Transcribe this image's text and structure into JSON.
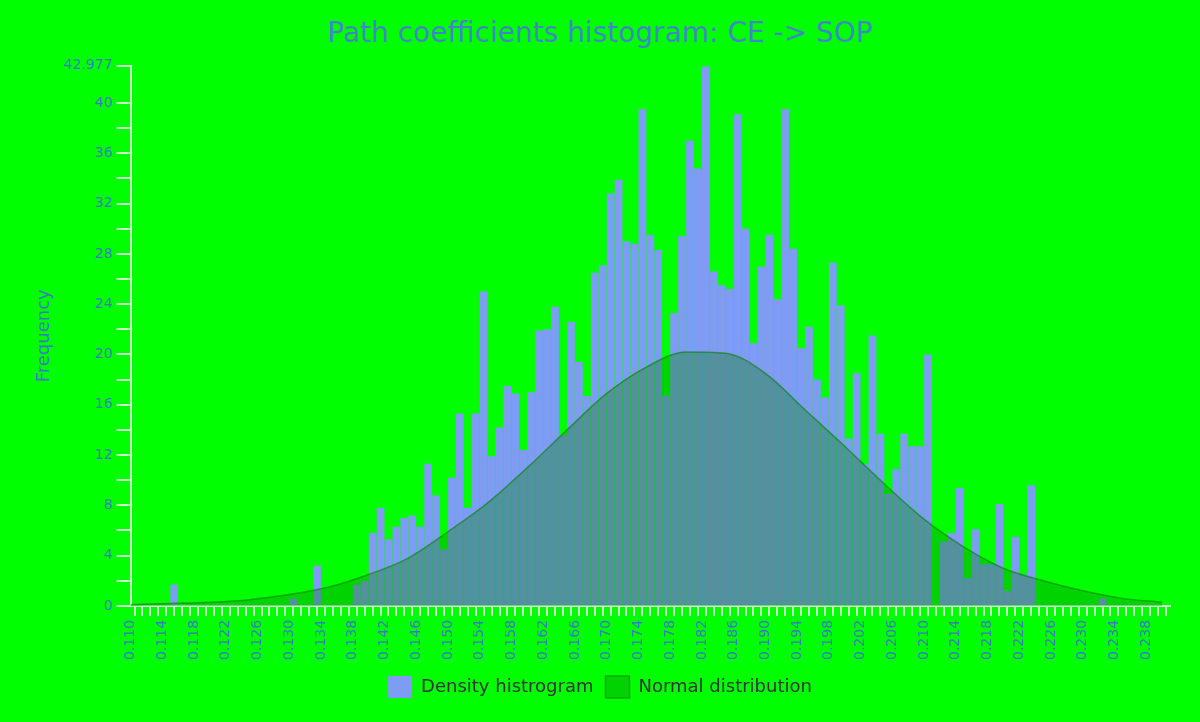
{
  "chart_data": {
    "type": "histogram",
    "title": "Path coefficients histogram: CE -> SOP",
    "ylabel": "Frequency",
    "bins": [
      0.11,
      0.111,
      0.112,
      0.113,
      0.114,
      0.115,
      0.116,
      0.117,
      0.118,
      0.119,
      0.12,
      0.121,
      0.122,
      0.123,
      0.124,
      0.125,
      0.126,
      0.127,
      0.128,
      0.129,
      0.13,
      0.131,
      0.132,
      0.133,
      0.134,
      0.135,
      0.136,
      0.137,
      0.138,
      0.139,
      0.14,
      0.141,
      0.142,
      0.143,
      0.144,
      0.145,
      0.146,
      0.147,
      0.148,
      0.149,
      0.15,
      0.151,
      0.152,
      0.153,
      0.154,
      0.155,
      0.156,
      0.157,
      0.158,
      0.159,
      0.16,
      0.161,
      0.162,
      0.163,
      0.164,
      0.165,
      0.166,
      0.167,
      0.168,
      0.169,
      0.17,
      0.171,
      0.172,
      0.173,
      0.174,
      0.175,
      0.176,
      0.177,
      0.178,
      0.179,
      0.18,
      0.181,
      0.182,
      0.183,
      0.184,
      0.185,
      0.186,
      0.187,
      0.188,
      0.189,
      0.19,
      0.191,
      0.192,
      0.193,
      0.194,
      0.195,
      0.196,
      0.197,
      0.198,
      0.199,
      0.2,
      0.201,
      0.202,
      0.203,
      0.204,
      0.205,
      0.206,
      0.207,
      0.208,
      0.209,
      0.21,
      0.211,
      0.212,
      0.213,
      0.214,
      0.215,
      0.216,
      0.217,
      0.218,
      0.219,
      0.22,
      0.221,
      0.222,
      0.223,
      0.224,
      0.225,
      0.226,
      0.227,
      0.228,
      0.229,
      0.23,
      0.231,
      0.232,
      0.233,
      0.234,
      0.235,
      0.236,
      0.237,
      0.238,
      0.239,
      0.24
    ],
    "series": [
      {
        "name": "Density histrogram",
        "color": "#7f9cf4",
        "values": [
          0,
          0,
          0,
          0,
          0,
          1.7,
          0,
          0,
          0,
          0,
          0,
          0,
          0,
          0,
          0,
          0,
          0,
          0,
          0,
          0,
          0.6,
          0,
          0,
          3.2,
          0,
          0,
          0,
          0,
          1.7,
          2.0,
          5.8,
          7.8,
          5.3,
          6.3,
          7.0,
          7.2,
          6.3,
          11.3,
          8.8,
          4.5,
          10.2,
          15.3,
          7.8,
          15.3,
          25.0,
          11.9,
          14.2,
          17.5,
          16.9,
          12.4,
          17.0,
          21.9,
          22.0,
          23.8,
          13.6,
          22.6,
          19.4,
          16.7,
          26.5,
          27.1,
          32.8,
          33.9,
          29.0,
          28.8,
          39.5,
          29.5,
          28.3,
          16.7,
          23.3,
          29.4,
          37.0,
          34.8,
          42.9,
          26.6,
          25.5,
          25.2,
          39.1,
          30.0,
          20.9,
          27.0,
          29.5,
          24.4,
          39.5,
          28.4,
          20.5,
          22.2,
          18.0,
          16.6,
          27.3,
          23.9,
          13.3,
          18.5,
          11.3,
          21.5,
          13.7,
          8.9,
          10.9,
          13.7,
          12.7,
          12.7,
          20.0,
          0,
          5.1,
          5.8,
          9.4,
          2.2,
          6.1,
          3.3,
          3.3,
          8.1,
          1.2,
          5.5,
          2.5,
          9.6,
          0,
          0,
          0,
          0,
          0,
          0,
          0,
          0,
          0.6,
          0,
          0,
          0,
          0,
          0,
          0,
          0
        ]
      },
      {
        "name": "Normal distribution",
        "type": "area",
        "color": "#008000",
        "x": [
          0.11,
          0.115,
          0.12,
          0.125,
          0.13,
          0.135,
          0.14,
          0.145,
          0.15,
          0.155,
          0.16,
          0.165,
          0.17,
          0.175,
          0.18,
          0.185,
          0.19,
          0.195,
          0.2,
          0.205,
          0.21,
          0.215,
          0.22,
          0.225,
          0.23,
          0.235,
          0.24
        ],
        "values": [
          0.1,
          0.2,
          0.3,
          0.5,
          0.9,
          1.5,
          2.5,
          3.8,
          5.9,
          8.2,
          11.0,
          14.0,
          16.9,
          19.0,
          20.2,
          20.1,
          18.5,
          15.6,
          12.7,
          9.7,
          6.9,
          4.7,
          3.0,
          2.0,
          1.2,
          0.6,
          0.3
        ]
      }
    ],
    "xlim": [
      0.11,
      0.241
    ],
    "xticks": [
      {
        "value": 0.11,
        "label": "0.110"
      },
      {
        "value": 0.111,
        "label": null
      },
      {
        "value": 0.112,
        "label": null
      },
      {
        "value": 0.113,
        "label": null
      },
      {
        "value": 0.114,
        "label": "0.114"
      },
      {
        "value": 0.115,
        "label": null
      },
      {
        "value": 0.116,
        "label": null
      },
      {
        "value": 0.117,
        "label": null
      },
      {
        "value": 0.118,
        "label": "0.118"
      },
      {
        "value": 0.119,
        "label": null
      },
      {
        "value": 0.12,
        "label": null
      },
      {
        "value": 0.121,
        "label": null
      },
      {
        "value": 0.122,
        "label": "0.122"
      },
      {
        "value": 0.123,
        "label": null
      },
      {
        "value": 0.124,
        "label": null
      },
      {
        "value": 0.125,
        "label": null
      },
      {
        "value": 0.126,
        "label": "0.126"
      },
      {
        "value": 0.127,
        "label": null
      },
      {
        "value": 0.128,
        "label": null
      },
      {
        "value": 0.129,
        "label": null
      },
      {
        "value": 0.13,
        "label": "0.130"
      },
      {
        "value": 0.131,
        "label": null
      },
      {
        "value": 0.132,
        "label": null
      },
      {
        "value": 0.133,
        "label": null
      },
      {
        "value": 0.134,
        "label": "0.134"
      },
      {
        "value": 0.135,
        "label": null
      },
      {
        "value": 0.136,
        "label": null
      },
      {
        "value": 0.137,
        "label": null
      },
      {
        "value": 0.138,
        "label": "0.138"
      },
      {
        "value": 0.139,
        "label": null
      },
      {
        "value": 0.14,
        "label": null
      },
      {
        "value": 0.141,
        "label": null
      },
      {
        "value": 0.142,
        "label": "0.142"
      },
      {
        "value": 0.143,
        "label": null
      },
      {
        "value": 0.144,
        "label": null
      },
      {
        "value": 0.145,
        "label": null
      },
      {
        "value": 0.146,
        "label": "0.146"
      },
      {
        "value": 0.147,
        "label": null
      },
      {
        "value": 0.148,
        "label": null
      },
      {
        "value": 0.149,
        "label": null
      },
      {
        "value": 0.15,
        "label": "0.150"
      },
      {
        "value": 0.151,
        "label": null
      },
      {
        "value": 0.152,
        "label": null
      },
      {
        "value": 0.153,
        "label": null
      },
      {
        "value": 0.154,
        "label": "0.154"
      },
      {
        "value": 0.155,
        "label": null
      },
      {
        "value": 0.156,
        "label": null
      },
      {
        "value": 0.157,
        "label": null
      },
      {
        "value": 0.158,
        "label": "0.158"
      },
      {
        "value": 0.159,
        "label": null
      },
      {
        "value": 0.16,
        "label": null
      },
      {
        "value": 0.161,
        "label": null
      },
      {
        "value": 0.162,
        "label": "0.162"
      },
      {
        "value": 0.163,
        "label": null
      },
      {
        "value": 0.164,
        "label": null
      },
      {
        "value": 0.165,
        "label": null
      },
      {
        "value": 0.166,
        "label": "0.166"
      },
      {
        "value": 0.167,
        "label": null
      },
      {
        "value": 0.168,
        "label": null
      },
      {
        "value": 0.169,
        "label": null
      },
      {
        "value": 0.17,
        "label": "0.170"
      },
      {
        "value": 0.171,
        "label": null
      },
      {
        "value": 0.172,
        "label": null
      },
      {
        "value": 0.173,
        "label": null
      },
      {
        "value": 0.174,
        "label": "0.174"
      },
      {
        "value": 0.175,
        "label": null
      },
      {
        "value": 0.176,
        "label": null
      },
      {
        "value": 0.177,
        "label": null
      },
      {
        "value": 0.178,
        "label": "0.178"
      },
      {
        "value": 0.179,
        "label": null
      },
      {
        "value": 0.18,
        "label": null
      },
      {
        "value": 0.181,
        "label": null
      },
      {
        "value": 0.182,
        "label": "0.182"
      },
      {
        "value": 0.183,
        "label": null
      },
      {
        "value": 0.184,
        "label": null
      },
      {
        "value": 0.185,
        "label": null
      },
      {
        "value": 0.186,
        "label": "0.186"
      },
      {
        "value": 0.187,
        "label": null
      },
      {
        "value": 0.188,
        "label": null
      },
      {
        "value": 0.189,
        "label": null
      },
      {
        "value": 0.19,
        "label": "0.190"
      },
      {
        "value": 0.191,
        "label": null
      },
      {
        "value": 0.192,
        "label": null
      },
      {
        "value": 0.193,
        "label": null
      },
      {
        "value": 0.194,
        "label": "0.194"
      },
      {
        "value": 0.195,
        "label": null
      },
      {
        "value": 0.196,
        "label": null
      },
      {
        "value": 0.197,
        "label": null
      },
      {
        "value": 0.198,
        "label": "0.198"
      },
      {
        "value": 0.199,
        "label": null
      },
      {
        "value": 0.2,
        "label": null
      },
      {
        "value": 0.201,
        "label": null
      },
      {
        "value": 0.202,
        "label": "0.202"
      },
      {
        "value": 0.203,
        "label": null
      },
      {
        "value": 0.204,
        "label": null
      },
      {
        "value": 0.205,
        "label": null
      },
      {
        "value": 0.206,
        "label": "0.206"
      },
      {
        "value": 0.207,
        "label": null
      },
      {
        "value": 0.208,
        "label": null
      },
      {
        "value": 0.209,
        "label": null
      },
      {
        "value": 0.21,
        "label": "0.210"
      },
      {
        "value": 0.211,
        "label": null
      },
      {
        "value": 0.212,
        "label": null
      },
      {
        "value": 0.213,
        "label": null
      },
      {
        "value": 0.214,
        "label": "0.214"
      },
      {
        "value": 0.215,
        "label": null
      },
      {
        "value": 0.216,
        "label": null
      },
      {
        "value": 0.217,
        "label": null
      },
      {
        "value": 0.218,
        "label": "0.218"
      },
      {
        "value": 0.219,
        "label": null
      },
      {
        "value": 0.22,
        "label": null
      },
      {
        "value": 0.221,
        "label": null
      },
      {
        "value": 0.222,
        "label": "0.222"
      },
      {
        "value": 0.223,
        "label": null
      },
      {
        "value": 0.224,
        "label": null
      },
      {
        "value": 0.225,
        "label": null
      },
      {
        "value": 0.226,
        "label": "0.226"
      },
      {
        "value": 0.227,
        "label": null
      },
      {
        "value": 0.228,
        "label": null
      },
      {
        "value": 0.229,
        "label": null
      },
      {
        "value": 0.23,
        "label": "0.230"
      },
      {
        "value": 0.231,
        "label": null
      },
      {
        "value": 0.232,
        "label": null
      },
      {
        "value": 0.233,
        "label": null
      },
      {
        "value": 0.234,
        "label": "0.234"
      },
      {
        "value": 0.235,
        "label": null
      },
      {
        "value": 0.236,
        "label": null
      },
      {
        "value": 0.237,
        "label": null
      },
      {
        "value": 0.238,
        "label": "0.238"
      },
      {
        "value": 0.239,
        "label": null
      },
      {
        "value": 0.24,
        "label": null
      }
    ],
    "ylim": [
      0,
      42.977
    ],
    "yticks": [
      0,
      {
        "value": 2,
        "label": null
      },
      4,
      {
        "value": 6,
        "label": null
      },
      8,
      {
        "value": 10,
        "label": null
      },
      12,
      {
        "value": 14,
        "label": null
      },
      16,
      {
        "value": 18,
        "label": null
      },
      20,
      {
        "value": 22,
        "label": null
      },
      24,
      {
        "value": 26,
        "label": null
      },
      28,
      {
        "value": 30,
        "label": null
      },
      32,
      {
        "value": 34,
        "label": null
      },
      36,
      {
        "value": 38,
        "label": null
      },
      40,
      42.977
    ],
    "grid": false,
    "legend": "bottom"
  }
}
